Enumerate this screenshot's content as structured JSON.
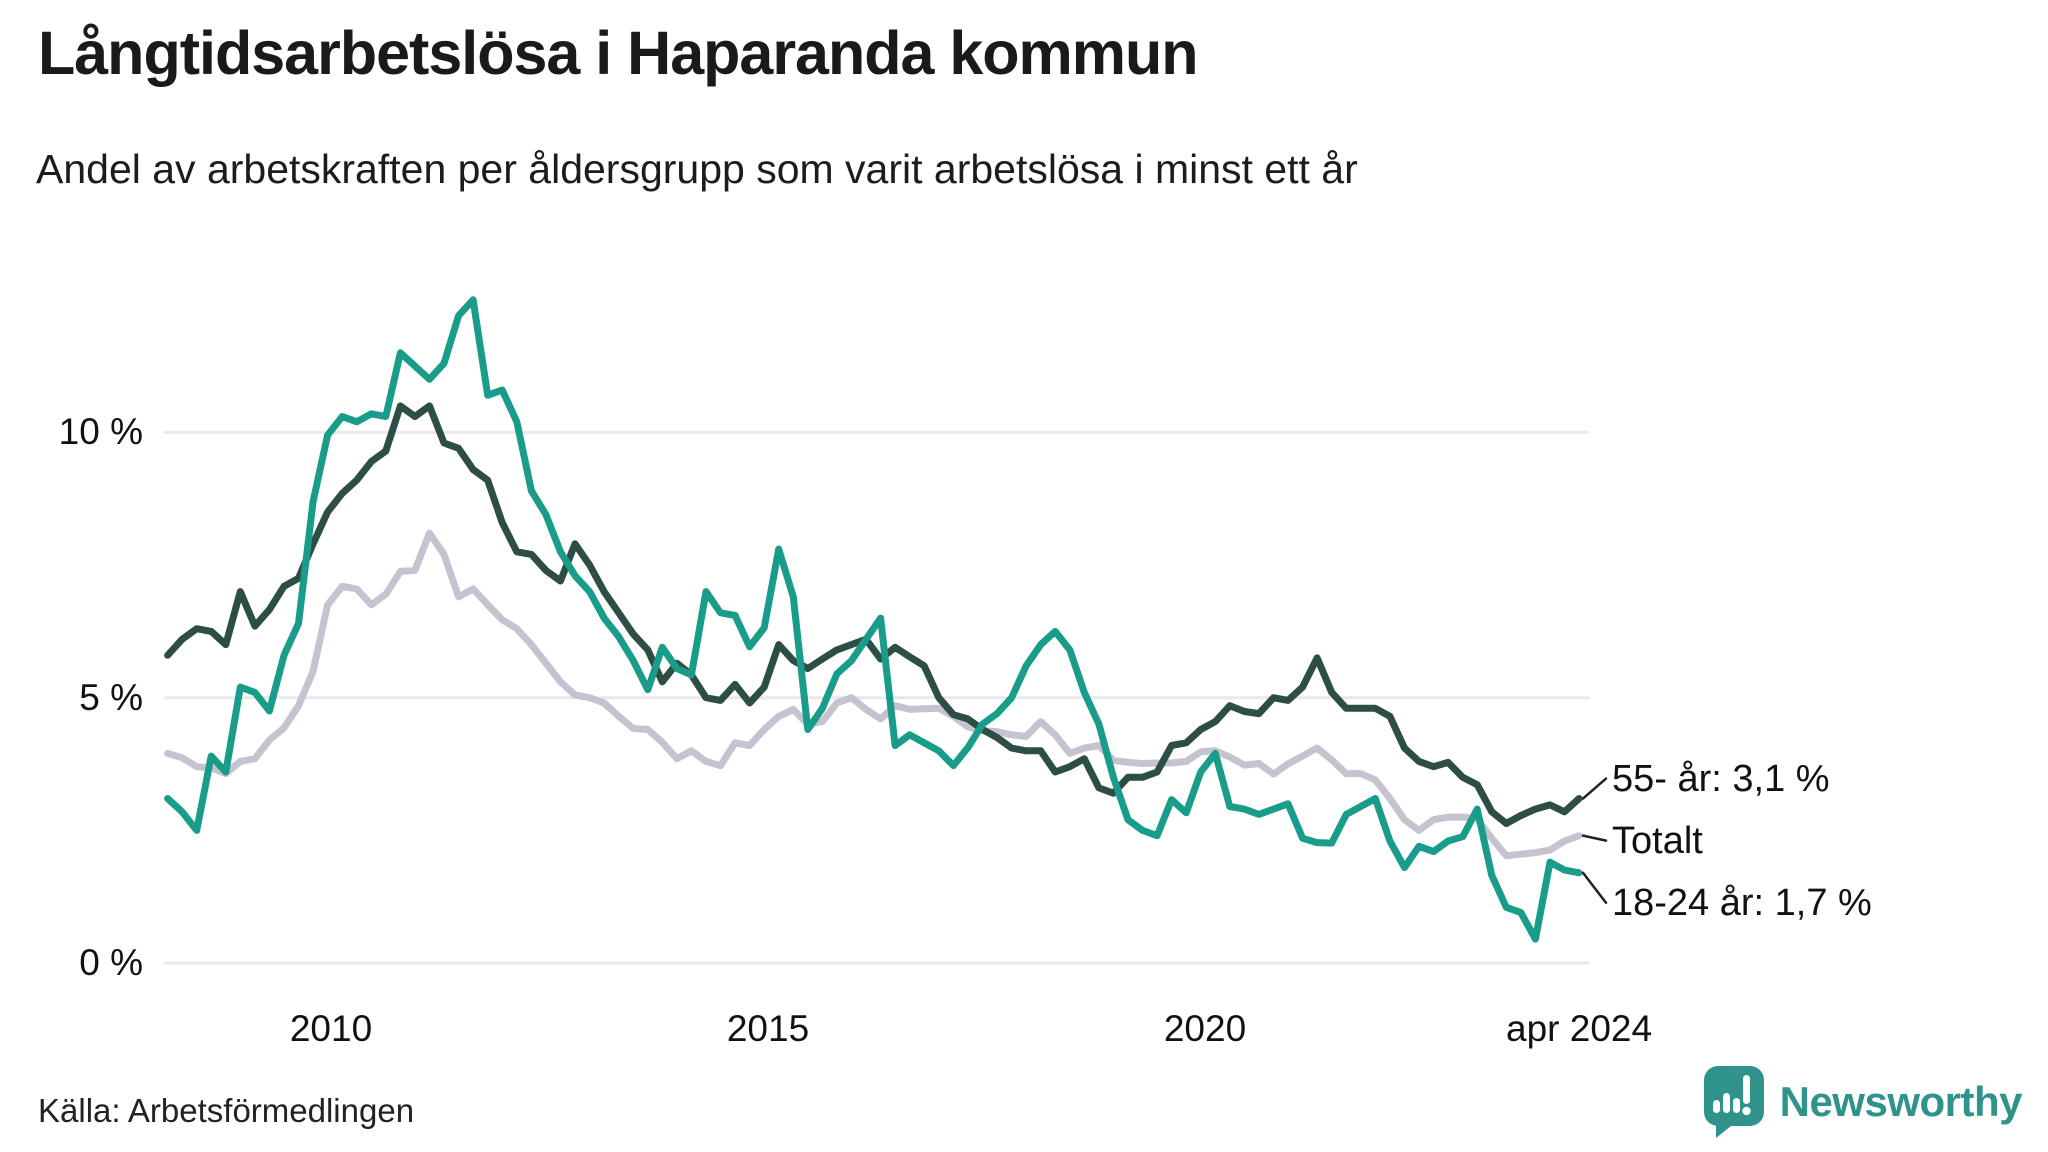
{
  "header": {
    "title": "Långtidsarbetslösa i Haparanda kommun",
    "subtitle": "Andel av arbetskraften per åldersgrupp som varit arbetslösa i minst ett år"
  },
  "footer": {
    "source": "Källa: Arbetsförmedlingen",
    "logo_text": "Newsworthy"
  },
  "colors": {
    "teal": "#1a9c8b",
    "dark_green": "#2d4d45",
    "gray": "#c6c3d1",
    "gridline": "#e9e8ed",
    "leader": "#222222",
    "logo": "#2f938c"
  },
  "chart_data": {
    "type": "line",
    "title": "Långtidsarbetslösa i Haparanda kommun",
    "subtitle": "Andel av arbetskraften per åldersgrupp som varit arbetslösa i minst ett år",
    "unit": "%",
    "x_start": 2008.13,
    "x_end": 2024.28,
    "ylim": [
      0,
      13
    ],
    "grid": "horizontal",
    "legend_position": "end-labels-right",
    "x_ticks": [
      {
        "value": 2010,
        "label": "2010"
      },
      {
        "value": 2015,
        "label": "2015"
      },
      {
        "value": 2020,
        "label": "2020"
      },
      {
        "value": 2024.28,
        "label": "apr 2024"
      }
    ],
    "y_ticks": [
      {
        "value": 10,
        "label": "10 %"
      },
      {
        "value": 5,
        "label": "5 %"
      },
      {
        "value": 0,
        "label": "0 %"
      }
    ],
    "series": [
      {
        "name": "55- år",
        "end_label": "55- år: 3,1 %",
        "last_value": 3.1,
        "color_key": "dark_green",
        "z": 2,
        "values": [
          5.8,
          6.1,
          6.3,
          6.25,
          6.0,
          7.0,
          6.35,
          6.66,
          7.1,
          7.25,
          7.9,
          8.5,
          8.85,
          9.1,
          9.45,
          9.65,
          10.5,
          10.3,
          10.5,
          9.8,
          9.7,
          9.3,
          9.1,
          8.3,
          7.75,
          7.7,
          7.4,
          7.2,
          7.9,
          7.5,
          7.0,
          6.6,
          6.2,
          5.9,
          5.3,
          5.65,
          5.43,
          5.0,
          4.95,
          5.25,
          4.9,
          5.2,
          6.0,
          5.7,
          5.55,
          5.73,
          5.9,
          6.0,
          6.1,
          5.73,
          5.95,
          5.77,
          5.6,
          5.0,
          4.68,
          4.6,
          4.4,
          4.25,
          4.05,
          4.0,
          4.0,
          3.6,
          3.7,
          3.85,
          3.3,
          3.2,
          3.5,
          3.5,
          3.6,
          4.1,
          4.15,
          4.4,
          4.55,
          4.85,
          4.74,
          4.7,
          5.0,
          4.95,
          5.2,
          5.75,
          5.1,
          4.8,
          4.8,
          4.8,
          4.65,
          4.05,
          3.8,
          3.7,
          3.78,
          3.5,
          3.36,
          2.85,
          2.63,
          2.78,
          2.9,
          2.98,
          2.85,
          3.1
        ]
      },
      {
        "name": "Totalt",
        "end_label": "Totalt",
        "last_value": 2.4,
        "color_key": "gray",
        "z": 1,
        "values": [
          3.95,
          3.87,
          3.7,
          3.68,
          3.57,
          3.8,
          3.85,
          4.2,
          4.43,
          4.85,
          5.5,
          6.75,
          7.1,
          7.05,
          6.75,
          6.95,
          7.38,
          7.4,
          8.1,
          7.7,
          6.9,
          7.05,
          6.75,
          6.47,
          6.3,
          6.0,
          5.65,
          5.3,
          5.05,
          5.0,
          4.9,
          4.65,
          4.42,
          4.4,
          4.16,
          3.85,
          4.0,
          3.8,
          3.72,
          4.15,
          4.1,
          4.4,
          4.65,
          4.78,
          4.5,
          4.55,
          4.9,
          5.0,
          4.78,
          4.6,
          4.85,
          4.78,
          4.79,
          4.8,
          4.65,
          4.45,
          4.38,
          4.36,
          4.3,
          4.27,
          4.55,
          4.3,
          3.95,
          4.05,
          4.1,
          3.82,
          3.78,
          3.76,
          3.77,
          3.77,
          3.8,
          3.98,
          4.0,
          3.88,
          3.73,
          3.76,
          3.56,
          3.75,
          3.9,
          4.05,
          3.83,
          3.57,
          3.57,
          3.45,
          3.1,
          2.7,
          2.5,
          2.7,
          2.75,
          2.75,
          2.72,
          2.35,
          2.02,
          2.05,
          2.08,
          2.13,
          2.3,
          2.4
        ]
      },
      {
        "name": "18-24 år",
        "end_label": "18-24 år: 1,7 %",
        "last_value": 1.7,
        "color_key": "teal",
        "z": 3,
        "values": [
          3.1,
          2.85,
          2.5,
          3.9,
          3.6,
          5.2,
          5.1,
          4.75,
          5.8,
          6.4,
          8.7,
          9.95,
          10.3,
          10.2,
          10.35,
          10.3,
          11.5,
          11.25,
          11.0,
          11.3,
          12.2,
          12.5,
          10.7,
          10.8,
          10.2,
          8.9,
          8.45,
          7.75,
          7.3,
          7.0,
          6.5,
          6.15,
          5.7,
          5.15,
          5.95,
          5.55,
          5.43,
          7.0,
          6.6,
          6.55,
          5.96,
          6.32,
          7.8,
          6.9,
          4.4,
          4.8,
          5.45,
          5.7,
          6.1,
          6.5,
          4.1,
          4.3,
          4.15,
          4.0,
          3.72,
          4.06,
          4.5,
          4.7,
          5.0,
          5.6,
          6.0,
          6.25,
          5.9,
          5.1,
          4.5,
          3.5,
          2.7,
          2.5,
          2.4,
          3.08,
          2.83,
          3.6,
          3.95,
          2.95,
          2.9,
          2.8,
          2.9,
          3.0,
          2.35,
          2.27,
          2.26,
          2.8,
          2.95,
          3.1,
          2.3,
          1.8,
          2.2,
          2.1,
          2.3,
          2.38,
          2.9,
          1.65,
          1.05,
          0.95,
          0.45,
          1.9,
          1.75,
          1.7
        ]
      }
    ]
  }
}
